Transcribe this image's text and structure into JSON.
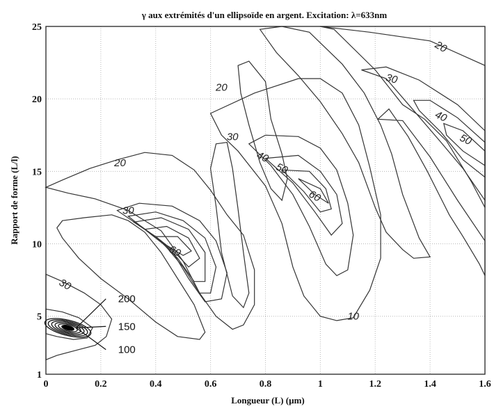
{
  "chart_data": {
    "type": "contour",
    "title": "γ aux extrémités d'un ellipsoïde en argent. Excitation: λ=633nm",
    "xlabel": "Longueur (L) (µm)",
    "ylabel": "Rapport de forme (L/l)",
    "xlim": [
      0,
      1.6
    ],
    "ylim": [
      1,
      25
    ],
    "xticks": [
      "0",
      "0.2",
      "0.4",
      "0.6",
      "0.8",
      "1",
      "1.2",
      "1.4",
      "1.6"
    ],
    "yticks": [
      "1",
      "5",
      "10",
      "15",
      "20",
      "25"
    ],
    "grid": true,
    "contour_labels": [
      {
        "text": "20",
        "x": 1.44,
        "y": 23.6,
        "angle": 30
      },
      {
        "text": "30",
        "x": 1.26,
        "y": 21.4,
        "angle": 15
      },
      {
        "text": "40",
        "x": 1.44,
        "y": 18.8,
        "angle": 25
      },
      {
        "text": "50",
        "x": 1.53,
        "y": 17.2,
        "angle": 25
      },
      {
        "text": "20",
        "x": 0.64,
        "y": 20.8,
        "angle": 0
      },
      {
        "text": "30",
        "x": 0.68,
        "y": 17.4,
        "angle": 0
      },
      {
        "text": "40",
        "x": 0.79,
        "y": 16.0,
        "angle": 25
      },
      {
        "text": "50",
        "x": 0.86,
        "y": 15.2,
        "angle": 25
      },
      {
        "text": "60",
        "x": 0.98,
        "y": 13.3,
        "angle": 30
      },
      {
        "text": "20",
        "x": 0.27,
        "y": 15.6,
        "angle": 0
      },
      {
        "text": "30",
        "x": 0.3,
        "y": 12.3,
        "angle": 0
      },
      {
        "text": "60",
        "x": 0.47,
        "y": 9.5,
        "angle": 30
      },
      {
        "text": "30",
        "x": 0.07,
        "y": 7.2,
        "angle": 30
      },
      {
        "text": "10",
        "x": 1.12,
        "y": 5.0,
        "angle": 0
      }
    ],
    "callouts": [
      {
        "text": "200",
        "x": 0.31,
        "y": 6.2
      },
      {
        "text": "150",
        "x": 0.31,
        "y": 4.3
      },
      {
        "text": "100",
        "x": 0.31,
        "y": 2.7
      }
    ],
    "hotspot": {
      "x": 0.08,
      "y": 4.2,
      "levels": [
        100,
        150,
        200
      ]
    }
  }
}
